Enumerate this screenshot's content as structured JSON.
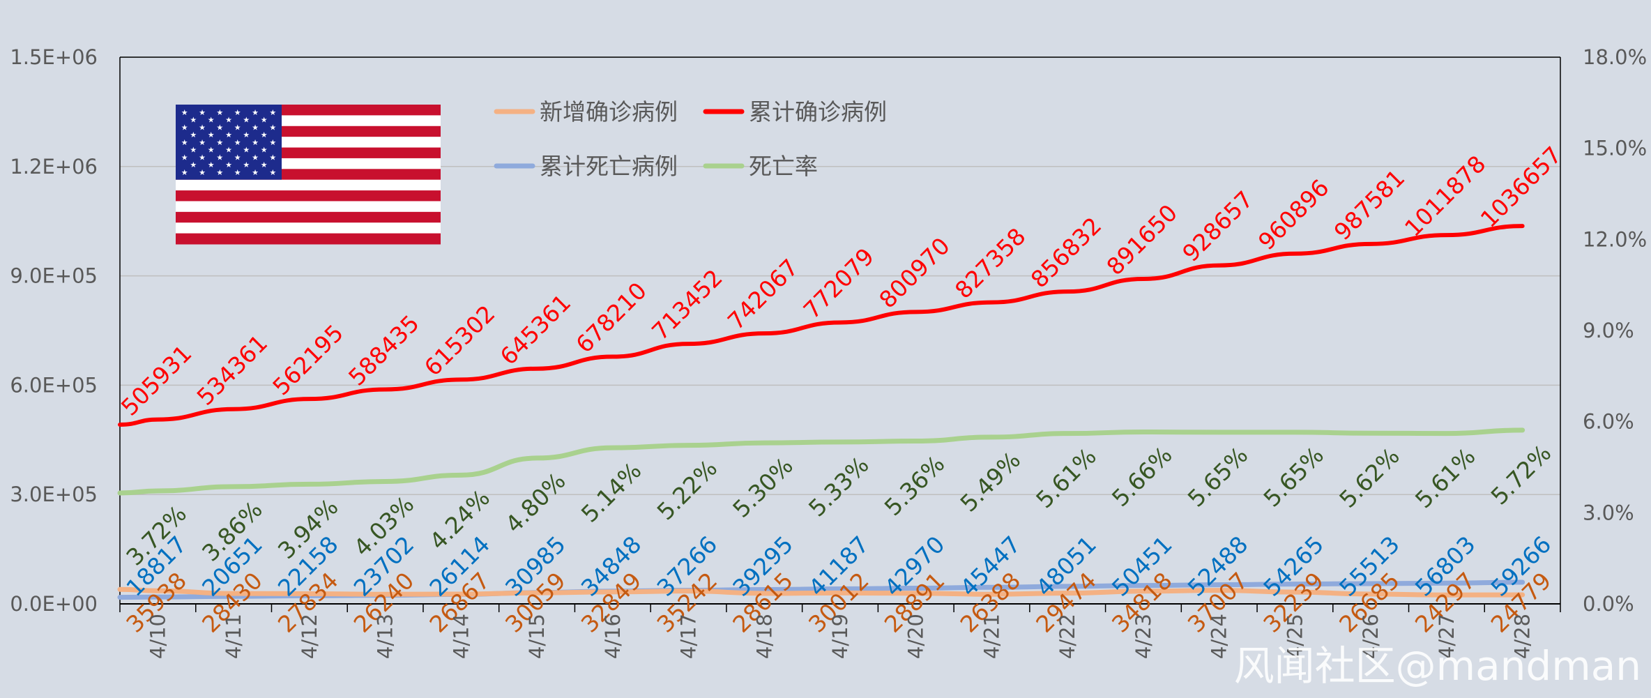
{
  "chart_data": {
    "type": "line",
    "categories": [
      "4/10",
      "4/11",
      "4/12",
      "4/13",
      "4/14",
      "4/15",
      "4/16",
      "4/17",
      "4/18",
      "4/19",
      "4/20",
      "4/21",
      "4/22",
      "4/23",
      "4/24",
      "4/25",
      "4/26",
      "4/27",
      "4/28"
    ],
    "y_left_ticks": [
      "0.0E+00",
      "3.0E+05",
      "6.0E+05",
      "9.0E+05",
      "1.2E+06",
      "1.5E+06"
    ],
    "y_right_ticks": [
      "0.0%",
      "3.0%",
      "6.0%",
      "9.0%",
      "12.0%",
      "15.0%",
      "18.0%"
    ],
    "ylim_left": [
      0,
      1500000
    ],
    "ylim_right": [
      0,
      18
    ],
    "grid": true,
    "legend_position": "top",
    "series": [
      {
        "name": "新增确诊病例",
        "axis": "left",
        "color": "#f4b183",
        "label_color": "#c55a11",
        "values": [
          35938,
          28430,
          27834,
          26240,
          26867,
          30059,
          32849,
          35242,
          28615,
          30012,
          28891,
          26388,
          29474,
          34818,
          37007,
          32239,
          26685,
          24297,
          24779
        ],
        "labels": [
          "35938",
          "28430",
          "27834",
          "26240",
          "26867",
          "30059",
          "32849",
          "35242",
          "28615",
          "30012",
          "28891",
          "26388",
          "29474",
          "34818",
          "37007",
          "32239",
          "26685",
          "24297",
          "24779"
        ]
      },
      {
        "name": "累计确诊病例",
        "axis": "left",
        "color": "#ff0000",
        "label_color": "#ff0000",
        "values": [
          505931,
          534361,
          562195,
          588435,
          615302,
          645361,
          678210,
          713452,
          742067,
          772079,
          800970,
          827358,
          856832,
          891650,
          928657,
          960896,
          987581,
          1011878,
          1036657
        ],
        "labels": [
          "505931",
          "534361",
          "562195",
          "588435",
          "615302",
          "645361",
          "678210",
          "713452",
          "742067",
          "772079",
          "800970",
          "827358",
          "856832",
          "891650",
          "928657",
          "960896",
          "987581",
          "1011878",
          "1036657"
        ]
      },
      {
        "name": "累计死亡病例",
        "axis": "left",
        "color": "#8faadc",
        "label_color": "#0070c0",
        "values": [
          18817,
          20651,
          22158,
          23702,
          26114,
          30985,
          34848,
          37266,
          39295,
          41187,
          42970,
          45447,
          48051,
          50451,
          52488,
          54265,
          55513,
          56803,
          59266
        ],
        "labels": [
          "18817",
          "20651",
          "22158",
          "23702",
          "26114",
          "30985",
          "34848",
          "37266",
          "39295",
          "41187",
          "42970",
          "45447",
          "48051",
          "50451",
          "52488",
          "54265",
          "55513",
          "56803",
          "59266"
        ]
      },
      {
        "name": "死亡率",
        "axis": "right",
        "color": "#a9d18e",
        "label_color": "#375623",
        "values": [
          3.72,
          3.86,
          3.94,
          4.03,
          4.24,
          4.8,
          5.14,
          5.22,
          5.3,
          5.33,
          5.36,
          5.49,
          5.61,
          5.66,
          5.65,
          5.65,
          5.62,
          5.61,
          5.72
        ],
        "labels": [
          "3.72%",
          "3.86%",
          "3.94%",
          "4.03%",
          "4.24%",
          "4.80%",
          "5.14%",
          "5.22%",
          "5.30%",
          "5.33%",
          "5.36%",
          "5.49%",
          "5.61%",
          "5.66%",
          "5.65%",
          "5.65%",
          "5.62%",
          "5.61%",
          "5.72%"
        ]
      }
    ]
  },
  "watermark": "风闻社区@mandman",
  "flag": {
    "name": "us-flag-icon",
    "red": "#c8102e",
    "white": "#ffffff",
    "blue": "#1d2b8c"
  }
}
